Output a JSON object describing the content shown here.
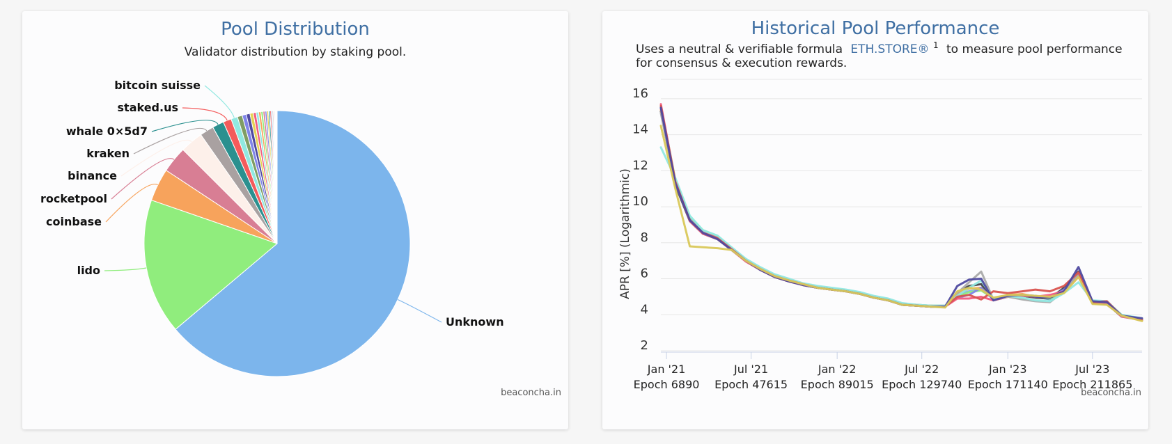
{
  "left_panel": {
    "title": "Pool Distribution",
    "subtitle": "Validator distribution by staking pool.",
    "credit": "beaconcha.in"
  },
  "right_panel": {
    "title": "Historical Pool Performance",
    "subtitle_prefix": "Uses a neutral & verifiable formula",
    "subtitle_link": "ETH.STORE®",
    "subtitle_sup": "1",
    "subtitle_suffix": "to measure pool performance",
    "subtitle_line2": "for consensus & execution rewards.",
    "credit": "beaconcha.in"
  },
  "chart_data": [
    {
      "type": "pie",
      "title": "Pool Distribution",
      "subtitle": "Validator distribution by staking pool.",
      "slices": [
        {
          "name": "Unknown",
          "value": 64.0,
          "color": "#7cb5ec",
          "labeled": true
        },
        {
          "name": "lido",
          "value": 16.5,
          "color": "#90ed7d",
          "labeled": true
        },
        {
          "name": "coinbase",
          "value": 4.0,
          "color": "#f7a35c",
          "labeled": true
        },
        {
          "name": "rocketpool",
          "value": 3.2,
          "color": "#d87e94",
          "labeled": true
        },
        {
          "name": "binance",
          "value": 2.8,
          "color": "#fdf0ea",
          "labeled": true
        },
        {
          "name": "kraken",
          "value": 1.7,
          "color": "#a9a1a1",
          "labeled": true
        },
        {
          "name": "whale 0×5d7",
          "value": 1.4,
          "color": "#2b908f",
          "labeled": true
        },
        {
          "name": "staked.us",
          "value": 1.0,
          "color": "#f45b5b",
          "labeled": true
        },
        {
          "name": "bitcoin suisse",
          "value": 0.8,
          "color": "#91e8e1",
          "labeled": true
        },
        {
          "name": "",
          "value": 0.6,
          "color": "#7f9d64",
          "labeled": false
        },
        {
          "name": "",
          "value": 0.5,
          "color": "#8085e9",
          "labeled": false
        },
        {
          "name": "",
          "value": 0.45,
          "color": "#4f4aa0",
          "labeled": false
        },
        {
          "name": "",
          "value": 0.4,
          "color": "#e4d354",
          "labeled": false
        },
        {
          "name": "",
          "value": 0.35,
          "color": "#f15c80",
          "labeled": false
        },
        {
          "name": "",
          "value": 0.3,
          "color": "#91e8e1",
          "labeled": false
        },
        {
          "name": "",
          "value": 0.28,
          "color": "#f7a35c",
          "labeled": false
        },
        {
          "name": "",
          "value": 0.26,
          "color": "#90ed7d",
          "labeled": false
        },
        {
          "name": "",
          "value": 0.24,
          "color": "#d87e94",
          "labeled": false
        },
        {
          "name": "",
          "value": 0.22,
          "color": "#8085e9",
          "labeled": false
        },
        {
          "name": "",
          "value": 0.2,
          "color": "#e4d354",
          "labeled": false
        },
        {
          "name": "",
          "value": 0.18,
          "color": "#2b908f",
          "labeled": false
        },
        {
          "name": "",
          "value": 0.16,
          "color": "#f45b5b",
          "labeled": false
        },
        {
          "name": "",
          "value": 0.14,
          "color": "#7cb5ec",
          "labeled": false
        },
        {
          "name": "",
          "value": 0.12,
          "color": "#a9a1a1",
          "labeled": false
        },
        {
          "name": "",
          "value": 0.1,
          "color": "#f15c80",
          "labeled": false
        },
        {
          "name": "",
          "value": 0.09,
          "color": "#90ed7d",
          "labeled": false
        },
        {
          "name": "",
          "value": 0.08,
          "color": "#8085e9",
          "labeled": false
        },
        {
          "name": "",
          "value": 0.07,
          "color": "#e4d354",
          "labeled": false
        },
        {
          "name": "",
          "value": 0.06,
          "color": "#f7a35c",
          "labeled": false
        },
        {
          "name": "",
          "value": 0.05,
          "color": "#d87e94",
          "labeled": false
        }
      ]
    },
    {
      "type": "line",
      "title": "Historical Pool Performance",
      "ylabel": "APR [%] (Logarithmic)",
      "xlabel": "",
      "ylim": [
        2,
        17
      ],
      "yticks": [
        2,
        4,
        6,
        8,
        10,
        12,
        14,
        16
      ],
      "xrange": [
        "2020-12-20",
        "2023-10-15"
      ],
      "xticks": [
        {
          "date": "2021-01-01",
          "label": "Jan '21",
          "epoch": "Epoch 6890"
        },
        {
          "date": "2021-07-01",
          "label": "Jul '21",
          "epoch": "Epoch 47615"
        },
        {
          "date": "2022-01-01",
          "label": "Jan '22",
          "epoch": "Epoch 89015"
        },
        {
          "date": "2022-07-01",
          "label": "Jul '22",
          "epoch": "Epoch 129740"
        },
        {
          "date": "2023-01-01",
          "label": "Jan '23",
          "epoch": "Epoch 171140"
        },
        {
          "date": "2023-07-01",
          "label": "Jul '23",
          "epoch": "Epoch 211865"
        }
      ],
      "x": [
        "2020-12-20",
        "2021-01-20",
        "2021-02-20",
        "2021-03-20",
        "2021-04-20",
        "2021-05-20",
        "2021-06-20",
        "2021-07-20",
        "2021-08-20",
        "2021-09-20",
        "2021-10-20",
        "2021-11-20",
        "2021-12-20",
        "2022-01-20",
        "2022-02-20",
        "2022-03-20",
        "2022-04-20",
        "2022-05-20",
        "2022-06-20",
        "2022-07-20",
        "2022-08-20",
        "2022-09-15",
        "2022-10-10",
        "2022-11-05",
        "2022-12-01",
        "2023-01-01",
        "2023-02-01",
        "2023-03-01",
        "2023-04-01",
        "2023-05-01",
        "2023-06-01",
        "2023-07-01",
        "2023-08-01",
        "2023-09-01",
        "2023-10-15"
      ],
      "series": [
        {
          "color": "#7cb5ec",
          "values": [
            15.5,
            11.4,
            9.3,
            8.6,
            8.3,
            7.7,
            7.0,
            6.6,
            6.2,
            5.9,
            5.7,
            5.55,
            5.45,
            5.35,
            5.2,
            5.0,
            4.85,
            4.6,
            4.5,
            4.5,
            4.45,
            5.1,
            5.3,
            5.4,
            4.9,
            5.1,
            5.1,
            5.0,
            4.85,
            5.4,
            6.3,
            4.7,
            4.65,
            3.95,
            3.75
          ]
        },
        {
          "color": "#434348",
          "values": [
            15.3,
            11.2,
            9.2,
            8.5,
            8.2,
            7.6,
            7.0,
            6.5,
            6.1,
            5.85,
            5.65,
            5.5,
            5.4,
            5.3,
            5.15,
            4.95,
            4.8,
            4.55,
            4.5,
            4.45,
            4.45,
            5.25,
            5.6,
            5.7,
            4.8,
            5.0,
            5.05,
            4.95,
            4.9,
            5.5,
            6.4,
            4.65,
            4.6,
            3.9,
            3.75
          ]
        },
        {
          "color": "#90ed7d",
          "values": [
            15.6,
            11.5,
            9.4,
            8.7,
            8.35,
            7.7,
            7.05,
            6.6,
            6.2,
            5.95,
            5.7,
            5.55,
            5.45,
            5.35,
            5.2,
            5.0,
            4.85,
            4.6,
            4.55,
            4.5,
            4.5,
            5.0,
            5.25,
            5.35,
            4.9,
            5.05,
            5.1,
            5.05,
            4.9,
            5.3,
            6.2,
            4.75,
            4.7,
            4.0,
            3.7
          ]
        },
        {
          "color": "#f7a35c",
          "values": [
            15.4,
            11.3,
            9.25,
            8.6,
            8.3,
            7.65,
            7.0,
            6.55,
            6.15,
            5.9,
            5.7,
            5.5,
            5.4,
            5.3,
            5.15,
            5.0,
            4.8,
            4.6,
            4.5,
            4.5,
            4.45,
            5.15,
            5.45,
            5.5,
            4.85,
            5.1,
            5.15,
            5.0,
            4.95,
            5.35,
            6.3,
            4.7,
            4.7,
            3.95,
            3.7
          ]
        },
        {
          "color": "#8085e9",
          "values": [
            15.5,
            11.3,
            9.3,
            8.55,
            8.25,
            7.65,
            7.0,
            6.55,
            6.15,
            5.9,
            5.65,
            5.5,
            5.4,
            5.3,
            5.15,
            4.95,
            4.8,
            4.55,
            4.5,
            4.45,
            4.45,
            4.95,
            5.1,
            5.5,
            4.85,
            5.05,
            5.1,
            5.05,
            4.95,
            5.4,
            6.25,
            4.7,
            4.65,
            3.9,
            3.7
          ]
        },
        {
          "color": "#f15c80",
          "values": [
            15.7,
            11.4,
            9.2,
            8.5,
            8.2,
            7.6,
            6.95,
            6.5,
            6.1,
            5.85,
            5.65,
            5.5,
            5.4,
            5.3,
            5.15,
            4.95,
            4.8,
            4.55,
            4.5,
            4.45,
            4.45,
            4.9,
            4.9,
            5.0,
            4.8,
            5.0,
            5.05,
            5.0,
            5.1,
            5.3,
            6.1,
            4.7,
            4.65,
            3.9,
            3.7
          ]
        },
        {
          "color": "#aaaaaa",
          "values": [
            15.2,
            11.3,
            9.3,
            8.6,
            8.3,
            7.7,
            7.05,
            6.6,
            6.2,
            5.95,
            5.7,
            5.55,
            5.45,
            5.35,
            5.2,
            5.0,
            4.85,
            4.6,
            4.55,
            4.5,
            4.5,
            5.2,
            5.8,
            6.4,
            4.85,
            5.0,
            4.85,
            4.75,
            4.7,
            5.3,
            6.3,
            4.75,
            4.7,
            4.0,
            3.75
          ]
        },
        {
          "color": "#91e8e1",
          "values": [
            13.3,
            11.6,
            9.5,
            8.7,
            8.4,
            7.75,
            7.1,
            6.65,
            6.25,
            6.0,
            5.75,
            5.6,
            5.5,
            5.4,
            5.25,
            5.05,
            4.9,
            4.65,
            4.55,
            4.5,
            4.5,
            5.05,
            5.5,
            5.9,
            4.9,
            5.05,
            4.95,
            4.8,
            4.75,
            5.2,
            5.8,
            4.8,
            4.75,
            4.0,
            3.8
          ]
        },
        {
          "color": "#d9534f",
          "values": [
            15.6,
            11.4,
            9.25,
            8.55,
            8.25,
            7.65,
            7.0,
            6.55,
            6.15,
            5.9,
            5.7,
            5.5,
            5.4,
            5.3,
            5.15,
            4.95,
            4.8,
            4.55,
            4.5,
            4.45,
            4.45,
            5.0,
            5.1,
            4.85,
            5.3,
            5.2,
            5.3,
            5.4,
            5.3,
            5.6,
            6.35,
            4.7,
            4.75,
            3.95,
            3.7
          ]
        },
        {
          "color": "#4f4aa0",
          "values": [
            15.5,
            11.3,
            9.25,
            8.55,
            8.2,
            7.6,
            7.0,
            6.5,
            6.1,
            5.85,
            5.65,
            5.5,
            5.4,
            5.3,
            5.15,
            4.95,
            4.8,
            4.55,
            4.5,
            4.45,
            4.45,
            5.6,
            5.95,
            6.0,
            4.8,
            5.05,
            5.1,
            5.0,
            4.95,
            5.3,
            6.65,
            4.75,
            4.7,
            3.95,
            3.8
          ]
        },
        {
          "color": "#d9c85a",
          "values": [
            14.5,
            11.0,
            7.8,
            7.75,
            7.7,
            7.6,
            7.0,
            6.55,
            6.15,
            5.9,
            5.7,
            5.5,
            5.4,
            5.3,
            5.15,
            4.95,
            4.8,
            4.55,
            4.5,
            4.45,
            4.4,
            5.3,
            5.5,
            5.4,
            4.95,
            5.1,
            5.1,
            5.05,
            5.0,
            5.2,
            6.1,
            4.6,
            4.55,
            3.95,
            3.65
          ]
        }
      ]
    }
  ]
}
